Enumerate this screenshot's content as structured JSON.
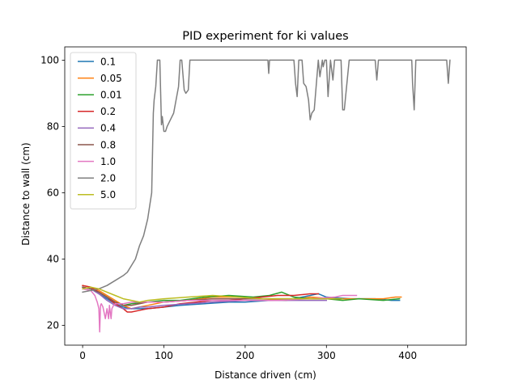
{
  "chart_data": {
    "type": "line",
    "title": "PID experiment for ki values",
    "xlabel": "Distance driven (cm)",
    "ylabel": "Distance to wall (cm)",
    "xlim": [
      -22,
      472
    ],
    "ylim": [
      14,
      104
    ],
    "xticks": [
      0,
      100,
      200,
      300,
      400
    ],
    "yticks": [
      20,
      40,
      60,
      80,
      100
    ],
    "grid": false,
    "legend": "upper-left",
    "series": [
      {
        "name": "0.1",
        "color": "#1f77b4",
        "x": [
          0,
          10,
          20,
          30,
          40,
          50,
          60,
          70,
          80,
          100,
          120,
          150,
          180,
          200,
          230,
          260,
          290,
          300,
          330,
          360,
          380,
          390
        ],
        "y": [
          31.5,
          31.0,
          29.5,
          28.0,
          26.5,
          25.5,
          25.0,
          25.0,
          25.0,
          25.5,
          26.0,
          26.5,
          27.0,
          27.0,
          27.5,
          28.0,
          29.5,
          28.5,
          28.0,
          28.0,
          27.5,
          27.5
        ]
      },
      {
        "name": "0.05",
        "color": "#ff7f0e",
        "x": [
          0,
          10,
          20,
          30,
          40,
          50,
          60,
          70,
          80,
          100,
          130,
          160,
          190,
          220,
          250,
          280,
          310,
          340,
          370,
          385,
          392
        ],
        "y": [
          32.0,
          31.5,
          30.5,
          29.0,
          27.5,
          26.0,
          25.0,
          25.5,
          26.0,
          27.0,
          27.5,
          28.5,
          28.5,
          28.0,
          27.5,
          28.5,
          28.0,
          28.0,
          28.0,
          28.5,
          28.5
        ]
      },
      {
        "name": "0.01",
        "color": "#2ca02c",
        "x": [
          0,
          10,
          20,
          30,
          40,
          50,
          60,
          80,
          100,
          120,
          150,
          180,
          210,
          230,
          245,
          260,
          280,
          300,
          320,
          340,
          370,
          390
        ],
        "y": [
          31.5,
          31.0,
          30.0,
          28.5,
          27.0,
          26.0,
          26.5,
          27.0,
          27.5,
          27.5,
          28.5,
          29.0,
          28.5,
          29.0,
          30.0,
          28.5,
          28.0,
          28.0,
          27.5,
          28.0,
          27.5,
          28.0
        ]
      },
      {
        "name": "0.2",
        "color": "#d62728",
        "x": [
          0,
          10,
          20,
          30,
          40,
          50,
          55,
          60,
          70,
          80,
          100,
          120,
          140,
          160,
          180,
          200,
          220,
          240,
          260,
          280,
          290
        ],
        "y": [
          32.0,
          31.5,
          30.0,
          28.5,
          26.5,
          25.0,
          24.0,
          24.0,
          24.5,
          25.0,
          25.5,
          26.5,
          27.0,
          27.5,
          27.5,
          28.0,
          28.5,
          29.0,
          29.0,
          29.5,
          29.5
        ]
      },
      {
        "name": "0.4",
        "color": "#9467bd",
        "x": [
          0,
          10,
          20,
          30,
          40,
          50,
          60,
          70,
          80,
          100,
          130,
          160,
          200,
          240,
          280,
          300
        ],
        "y": [
          31.5,
          31.0,
          29.5,
          27.5,
          26.0,
          25.0,
          25.0,
          25.5,
          25.5,
          26.0,
          26.5,
          27.0,
          27.5,
          27.5,
          27.5,
          27.5
        ]
      },
      {
        "name": "0.8",
        "color": "#8c564b",
        "x": [
          0,
          10,
          20,
          30,
          40,
          50,
          60,
          70,
          80,
          100,
          130,
          160,
          190,
          220,
          250,
          280,
          300,
          320
        ],
        "y": [
          31.5,
          31.0,
          30.0,
          28.5,
          27.0,
          26.0,
          26.0,
          26.5,
          27.0,
          27.0,
          27.5,
          28.0,
          28.0,
          28.0,
          28.0,
          28.0,
          28.0,
          28.0
        ]
      },
      {
        "name": "1.0",
        "color": "#e377c2",
        "x": [
          0,
          10,
          15,
          18,
          20,
          21,
          22,
          23,
          25,
          28,
          30,
          32,
          33,
          35,
          36,
          38,
          40,
          50,
          60,
          80,
          100,
          130,
          160,
          200,
          240,
          280,
          310,
          320,
          330,
          337
        ],
        "y": [
          31.0,
          30.5,
          29.0,
          27.0,
          25.0,
          18.0,
          26.0,
          26.5,
          25.5,
          22.0,
          25.0,
          22.0,
          26.0,
          22.0,
          25.0,
          26.0,
          26.5,
          26.5,
          27.0,
          27.0,
          27.0,
          27.5,
          27.5,
          27.5,
          27.5,
          28.0,
          28.5,
          29.0,
          29.0,
          29.0
        ]
      },
      {
        "name": "2.0",
        "color": "#7f7f7f",
        "x": [
          0,
          10,
          20,
          30,
          40,
          50,
          55,
          60,
          65,
          70,
          75,
          80,
          85,
          87,
          88,
          90,
          92,
          95,
          97,
          98,
          100,
          102,
          104,
          108,
          112,
          118,
          120,
          122,
          125,
          127,
          130,
          132,
          134,
          136,
          140,
          160,
          180,
          200,
          228,
          229,
          230,
          232,
          250,
          260,
          262,
          264,
          266,
          270,
          272,
          275,
          278,
          280,
          282,
          285,
          290,
          292,
          295,
          296,
          298,
          300,
          302,
          305,
          308,
          310,
          312,
          318,
          320,
          322,
          328,
          330,
          340,
          350,
          360,
          362,
          364,
          370,
          390,
          405,
          406,
          408,
          410,
          412,
          420,
          440,
          448,
          450,
          452
        ],
        "y": [
          30.0,
          30.5,
          31.0,
          32.0,
          33.5,
          35.0,
          36.0,
          38.0,
          40.0,
          44.0,
          47.0,
          52.0,
          60.0,
          84.0,
          88.0,
          92.0,
          100.0,
          100.0,
          80.5,
          83.0,
          78.5,
          78.5,
          80.0,
          82.0,
          84.0,
          92.0,
          100.0,
          100.0,
          91.0,
          90.0,
          91.0,
          100.0,
          100.0,
          100.0,
          100.0,
          100.0,
          100.0,
          100.0,
          100.0,
          96.0,
          100.0,
          100.0,
          100.0,
          100.0,
          93.0,
          89.0,
          100.0,
          100.0,
          93.0,
          92.0,
          88.0,
          82.0,
          84.0,
          85.0,
          100.0,
          95.0,
          100.0,
          98.0,
          100.0,
          100.0,
          89.0,
          100.0,
          94.0,
          100.0,
          100.0,
          100.0,
          85.0,
          85.0,
          100.0,
          100.0,
          100.0,
          100.0,
          100.0,
          94.0,
          100.0,
          100.0,
          100.0,
          100.0,
          93.0,
          85.0,
          100.0,
          100.0,
          100.0,
          100.0,
          100.0,
          93.0,
          100.0
        ]
      },
      {
        "name": "5.0",
        "color": "#bcbd22",
        "x": [
          0,
          10,
          20,
          30,
          40,
          50,
          60,
          70,
          80,
          100,
          130,
          160,
          190,
          220,
          250,
          280,
          300,
          320
        ],
        "y": [
          31.0,
          31.5,
          31.0,
          30.0,
          29.0,
          28.0,
          27.5,
          27.0,
          27.5,
          28.0,
          28.5,
          29.0,
          28.5,
          28.0,
          28.0,
          28.0,
          28.0,
          28.0
        ]
      }
    ]
  }
}
